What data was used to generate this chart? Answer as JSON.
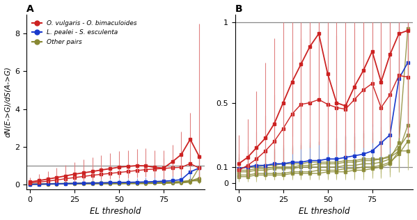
{
  "el_thresholds": [
    0,
    5,
    10,
    15,
    20,
    25,
    30,
    35,
    40,
    45,
    50,
    55,
    60,
    65,
    70,
    75,
    80,
    85,
    90,
    95
  ],
  "red_main": [
    0.15,
    0.22,
    0.3,
    0.38,
    0.47,
    0.56,
    0.63,
    0.7,
    0.78,
    0.85,
    0.93,
    0.97,
    1.01,
    1.0,
    0.92,
    0.88,
    1.22,
    1.6,
    2.4,
    1.5
  ],
  "red_upper": [
    0.38,
    0.55,
    0.7,
    0.88,
    1.05,
    1.18,
    1.32,
    1.45,
    1.56,
    1.68,
    1.78,
    1.82,
    1.9,
    1.92,
    1.8,
    1.82,
    2.1,
    2.8,
    3.8,
    8.5
  ],
  "red_lower": [
    0.05,
    0.07,
    0.1,
    0.14,
    0.18,
    0.22,
    0.26,
    0.3,
    0.35,
    0.38,
    0.42,
    0.44,
    0.46,
    0.46,
    0.38,
    0.28,
    0.6,
    0.85,
    1.25,
    0.52
  ],
  "red2_main": [
    0.1,
    0.14,
    0.19,
    0.25,
    0.32,
    0.38,
    0.44,
    0.5,
    0.55,
    0.6,
    0.65,
    0.7,
    0.75,
    0.8,
    0.83,
    0.86,
    0.9,
    0.92,
    1.12,
    0.88
  ],
  "red2_upper": [
    0.2,
    0.28,
    0.38,
    0.48,
    0.58,
    0.68,
    0.77,
    0.85,
    0.92,
    1.0,
    1.07,
    1.14,
    1.22,
    1.3,
    1.32,
    1.4,
    1.45,
    1.5,
    1.68,
    1.62
  ],
  "red2_lower": [
    0.03,
    0.05,
    0.07,
    0.1,
    0.13,
    0.17,
    0.2,
    0.23,
    0.26,
    0.29,
    0.33,
    0.36,
    0.38,
    0.41,
    0.43,
    0.44,
    0.46,
    0.46,
    0.67,
    0.32
  ],
  "blue_main": [
    0.02,
    0.03,
    0.04,
    0.05,
    0.06,
    0.07,
    0.08,
    0.09,
    0.1,
    0.11,
    0.12,
    0.13,
    0.14,
    0.15,
    0.17,
    0.19,
    0.22,
    0.27,
    0.68,
    0.88
  ],
  "blue_upper": [
    0.07,
    0.09,
    0.11,
    0.14,
    0.17,
    0.2,
    0.22,
    0.24,
    0.26,
    0.28,
    0.3,
    0.32,
    0.35,
    0.37,
    0.4,
    0.44,
    0.5,
    0.62,
    1.15,
    1.55
  ],
  "blue_lower": [
    0.0,
    0.0,
    0.01,
    0.01,
    0.01,
    0.01,
    0.02,
    0.02,
    0.02,
    0.02,
    0.03,
    0.03,
    0.03,
    0.04,
    0.04,
    0.05,
    0.06,
    0.08,
    0.22,
    0.32
  ],
  "olive_lines": [
    {
      "main": [
        0.02,
        0.03,
        0.03,
        0.04,
        0.04,
        0.05,
        0.05,
        0.06,
        0.06,
        0.06,
        0.07,
        0.07,
        0.07,
        0.08,
        0.08,
        0.08,
        0.09,
        0.1,
        0.13,
        0.92
      ],
      "upper": [
        0.06,
        0.07,
        0.08,
        0.1,
        0.11,
        0.13,
        0.14,
        0.15,
        0.16,
        0.16,
        0.18,
        0.18,
        0.19,
        0.2,
        0.21,
        0.22,
        0.26,
        0.32,
        0.42,
        1.65
      ],
      "lower": [
        0.0,
        0.0,
        0.0,
        0.0,
        0.0,
        0.0,
        0.0,
        0.01,
        0.01,
        0.01,
        0.01,
        0.01,
        0.01,
        0.01,
        0.01,
        0.01,
        0.01,
        0.02,
        0.03,
        0.22
      ]
    },
    {
      "main": [
        0.02,
        0.03,
        0.03,
        0.04,
        0.04,
        0.04,
        0.05,
        0.05,
        0.06,
        0.06,
        0.06,
        0.07,
        0.07,
        0.07,
        0.08,
        0.09,
        0.1,
        0.12,
        0.18,
        0.26
      ],
      "upper": [
        0.05,
        0.07,
        0.08,
        0.09,
        0.1,
        0.1,
        0.12,
        0.12,
        0.14,
        0.14,
        0.15,
        0.16,
        0.17,
        0.17,
        0.19,
        0.21,
        0.25,
        0.3,
        0.42,
        0.62
      ],
      "lower": [
        0.0,
        0.0,
        0.0,
        0.0,
        0.0,
        0.0,
        0.0,
        0.01,
        0.01,
        0.01,
        0.01,
        0.01,
        0.01,
        0.01,
        0.01,
        0.01,
        0.02,
        0.02,
        0.05,
        0.08
      ]
    },
    {
      "main": [
        0.03,
        0.04,
        0.04,
        0.05,
        0.05,
        0.06,
        0.07,
        0.07,
        0.08,
        0.08,
        0.09,
        0.09,
        0.1,
        0.11,
        0.12,
        0.13,
        0.14,
        0.16,
        0.22,
        0.3
      ],
      "upper": [
        0.07,
        0.09,
        0.1,
        0.11,
        0.12,
        0.14,
        0.16,
        0.16,
        0.18,
        0.18,
        0.2,
        0.21,
        0.22,
        0.24,
        0.26,
        0.29,
        0.32,
        0.38,
        0.56,
        0.82
      ],
      "lower": [
        0.01,
        0.01,
        0.01,
        0.01,
        0.01,
        0.01,
        0.01,
        0.01,
        0.02,
        0.02,
        0.02,
        0.02,
        0.02,
        0.02,
        0.03,
        0.03,
        0.04,
        0.04,
        0.06,
        0.08
      ]
    },
    {
      "main": [
        0.02,
        0.02,
        0.03,
        0.03,
        0.04,
        0.04,
        0.04,
        0.05,
        0.05,
        0.05,
        0.05,
        0.06,
        0.06,
        0.06,
        0.07,
        0.08,
        0.09,
        0.12,
        0.2,
        0.36
      ],
      "upper": [
        0.05,
        0.06,
        0.07,
        0.08,
        0.09,
        0.09,
        0.1,
        0.11,
        0.12,
        0.12,
        0.12,
        0.13,
        0.14,
        0.14,
        0.16,
        0.18,
        0.22,
        0.29,
        0.48,
        0.82
      ],
      "lower": [
        0.0,
        0.0,
        0.0,
        0.0,
        0.0,
        0.0,
        0.0,
        0.0,
        0.0,
        0.0,
        0.0,
        0.01,
        0.01,
        0.01,
        0.01,
        0.01,
        0.02,
        0.03,
        0.05,
        0.1
      ]
    },
    {
      "main": [
        0.04,
        0.05,
        0.06,
        0.07,
        0.08,
        0.09,
        0.1,
        0.11,
        0.11,
        0.12,
        0.12,
        0.13,
        0.13,
        0.14,
        0.14,
        0.15,
        0.15,
        0.17,
        0.22,
        0.2
      ],
      "upper": [
        0.09,
        0.11,
        0.13,
        0.15,
        0.17,
        0.19,
        0.21,
        0.22,
        0.23,
        0.25,
        0.25,
        0.27,
        0.27,
        0.29,
        0.29,
        0.3,
        0.32,
        0.38,
        0.56,
        0.56
      ],
      "lower": [
        0.01,
        0.01,
        0.02,
        0.02,
        0.02,
        0.02,
        0.02,
        0.03,
        0.03,
        0.03,
        0.03,
        0.03,
        0.03,
        0.04,
        0.04,
        0.04,
        0.04,
        0.05,
        0.06,
        0.06
      ]
    }
  ],
  "red_b1_main": [
    0.12,
    0.16,
    0.22,
    0.28,
    0.37,
    0.5,
    0.63,
    0.74,
    0.85,
    0.93,
    0.68,
    0.5,
    0.48,
    0.6,
    0.7,
    0.82,
    0.63,
    0.8,
    0.93,
    0.95
  ],
  "red_b1_upper": [
    0.3,
    0.4,
    0.57,
    0.75,
    0.9,
    1.0,
    1.0,
    1.0,
    1.0,
    1.0,
    1.0,
    1.0,
    1.0,
    1.0,
    1.0,
    1.0,
    1.0,
    1.0,
    1.0,
    1.0
  ],
  "red_b1_lower": [
    0.04,
    0.06,
    0.08,
    0.11,
    0.15,
    0.2,
    0.29,
    0.4,
    0.5,
    0.56,
    0.25,
    0.18,
    0.17,
    0.22,
    0.28,
    0.35,
    0.26,
    0.38,
    0.45,
    0.48
  ],
  "red_b2_main": [
    0.08,
    0.11,
    0.15,
    0.2,
    0.26,
    0.34,
    0.43,
    0.49,
    0.5,
    0.52,
    0.49,
    0.47,
    0.46,
    0.52,
    0.58,
    0.62,
    0.47,
    0.55,
    0.67,
    0.66
  ],
  "red_b2_upper": [
    0.18,
    0.23,
    0.32,
    0.42,
    0.55,
    0.7,
    0.82,
    0.9,
    0.96,
    1.0,
    0.96,
    0.92,
    0.89,
    0.96,
    1.0,
    1.0,
    1.0,
    1.0,
    1.0,
    1.0
  ],
  "red_b2_lower": [
    0.03,
    0.04,
    0.05,
    0.07,
    0.1,
    0.13,
    0.18,
    0.21,
    0.22,
    0.24,
    0.18,
    0.17,
    0.16,
    0.2,
    0.22,
    0.25,
    0.17,
    0.22,
    0.28,
    0.28
  ],
  "blue_b_main": [
    0.09,
    0.1,
    0.11,
    0.11,
    0.12,
    0.12,
    0.13,
    0.13,
    0.14,
    0.14,
    0.15,
    0.15,
    0.16,
    0.17,
    0.18,
    0.2,
    0.25,
    0.3,
    0.65,
    0.75
  ],
  "blue_b_upper": [
    0.16,
    0.17,
    0.19,
    0.2,
    0.21,
    0.22,
    0.23,
    0.24,
    0.25,
    0.26,
    0.27,
    0.28,
    0.3,
    0.31,
    0.33,
    0.37,
    0.44,
    0.56,
    1.0,
    1.0
  ],
  "blue_b_lower": [
    0.04,
    0.05,
    0.05,
    0.05,
    0.06,
    0.06,
    0.07,
    0.07,
    0.07,
    0.07,
    0.08,
    0.08,
    0.08,
    0.09,
    0.1,
    0.11,
    0.13,
    0.15,
    0.3,
    0.28
  ],
  "olive_b_lines": [
    {
      "main": [
        0.07,
        0.07,
        0.08,
        0.08,
        0.09,
        0.09,
        0.09,
        0.1,
        0.1,
        0.1,
        0.1,
        0.1,
        0.11,
        0.11,
        0.12,
        0.12,
        0.13,
        0.15,
        0.25,
        0.96
      ],
      "upper": [
        0.14,
        0.15,
        0.17,
        0.18,
        0.2,
        0.2,
        0.21,
        0.23,
        0.23,
        0.23,
        0.23,
        0.24,
        0.25,
        0.25,
        0.27,
        0.28,
        0.33,
        0.44,
        0.78,
        1.0
      ],
      "lower": [
        0.03,
        0.03,
        0.03,
        0.03,
        0.04,
        0.04,
        0.04,
        0.04,
        0.04,
        0.04,
        0.04,
        0.04,
        0.04,
        0.04,
        0.05,
        0.05,
        0.06,
        0.07,
        0.1,
        0.42
      ]
    },
    {
      "main": [
        0.05,
        0.05,
        0.06,
        0.06,
        0.06,
        0.06,
        0.07,
        0.07,
        0.07,
        0.08,
        0.08,
        0.08,
        0.09,
        0.09,
        0.1,
        0.1,
        0.11,
        0.13,
        0.18,
        0.26
      ],
      "upper": [
        0.1,
        0.11,
        0.12,
        0.13,
        0.13,
        0.13,
        0.15,
        0.15,
        0.16,
        0.17,
        0.17,
        0.18,
        0.2,
        0.2,
        0.22,
        0.23,
        0.26,
        0.31,
        0.44,
        0.75
      ],
      "lower": [
        0.02,
        0.02,
        0.02,
        0.02,
        0.02,
        0.02,
        0.03,
        0.03,
        0.03,
        0.03,
        0.03,
        0.03,
        0.03,
        0.03,
        0.04,
        0.04,
        0.04,
        0.05,
        0.07,
        0.1
      ]
    },
    {
      "main": [
        0.08,
        0.08,
        0.09,
        0.09,
        0.1,
        0.1,
        0.1,
        0.11,
        0.11,
        0.12,
        0.12,
        0.12,
        0.13,
        0.13,
        0.14,
        0.14,
        0.15,
        0.17,
        0.22,
        0.3
      ],
      "upper": [
        0.16,
        0.17,
        0.18,
        0.19,
        0.21,
        0.21,
        0.22,
        0.24,
        0.24,
        0.26,
        0.26,
        0.27,
        0.29,
        0.29,
        0.31,
        0.32,
        0.35,
        0.41,
        0.56,
        0.84
      ],
      "lower": [
        0.03,
        0.04,
        0.04,
        0.04,
        0.04,
        0.04,
        0.04,
        0.05,
        0.05,
        0.05,
        0.05,
        0.05,
        0.05,
        0.05,
        0.06,
        0.06,
        0.06,
        0.07,
        0.09,
        0.12
      ]
    },
    {
      "main": [
        0.04,
        0.04,
        0.05,
        0.05,
        0.05,
        0.05,
        0.06,
        0.06,
        0.06,
        0.06,
        0.07,
        0.07,
        0.07,
        0.08,
        0.08,
        0.09,
        0.1,
        0.12,
        0.2,
        0.36
      ],
      "upper": [
        0.08,
        0.09,
        0.1,
        0.1,
        0.1,
        0.1,
        0.12,
        0.12,
        0.12,
        0.13,
        0.14,
        0.14,
        0.15,
        0.17,
        0.17,
        0.2,
        0.24,
        0.29,
        0.48,
        0.9
      ],
      "lower": [
        0.01,
        0.01,
        0.01,
        0.02,
        0.02,
        0.02,
        0.02,
        0.02,
        0.02,
        0.02,
        0.02,
        0.02,
        0.02,
        0.02,
        0.02,
        0.03,
        0.03,
        0.04,
        0.07,
        0.12
      ]
    },
    {
      "main": [
        0.09,
        0.1,
        0.1,
        0.11,
        0.11,
        0.12,
        0.12,
        0.12,
        0.13,
        0.13,
        0.13,
        0.13,
        0.14,
        0.14,
        0.15,
        0.15,
        0.15,
        0.16,
        0.2,
        0.2
      ],
      "upper": [
        0.18,
        0.19,
        0.2,
        0.22,
        0.22,
        0.24,
        0.24,
        0.25,
        0.26,
        0.26,
        0.27,
        0.27,
        0.29,
        0.29,
        0.31,
        0.31,
        0.32,
        0.37,
        0.5,
        0.54
      ],
      "lower": [
        0.04,
        0.04,
        0.04,
        0.04,
        0.05,
        0.05,
        0.05,
        0.05,
        0.05,
        0.05,
        0.06,
        0.06,
        0.06,
        0.06,
        0.06,
        0.06,
        0.07,
        0.07,
        0.08,
        0.08
      ]
    }
  ],
  "red_color": "#cc2222",
  "red_color_light": "#e08080",
  "blue_color": "#1a3acc",
  "blue_color_light": "#8899dd",
  "olive_color": "#888833",
  "olive_color_light": "#bbbb77",
  "hline_color": "#888888",
  "title_A": "A",
  "title_B": "B",
  "ylabel_A": "dN(E->G)/dS(A->G)",
  "xlabel": "EL threshold",
  "legend_labels": [
    "O. vulgaris - O. bimaculoides",
    "L. pealei - S. esculenta",
    "Other pairs"
  ],
  "ylim_A": [
    -0.25,
    9.0
  ],
  "yticks_A": [
    0,
    2,
    4,
    6,
    8
  ],
  "xlim": [
    -2,
    98
  ],
  "xticks": [
    0,
    25,
    50,
    75
  ],
  "figsize": [
    5.99,
    3.16
  ],
  "dpi": 100
}
